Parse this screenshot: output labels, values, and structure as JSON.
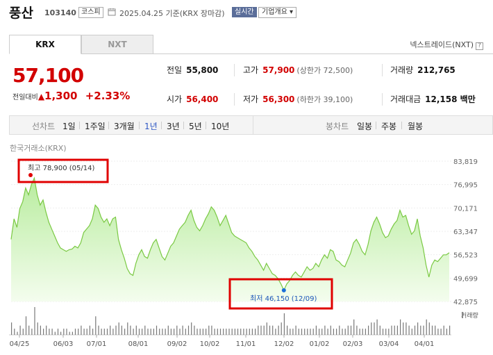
{
  "header": {
    "name": "풍산",
    "code": "103140",
    "market": "코스피",
    "date": "2025.04.25 기준(KRX 장마감)",
    "realtime": "실시간",
    "company_info": "기업개요 ▾",
    "calendar_icon": "calendar-icon"
  },
  "tabs": [
    {
      "label": "KRX",
      "active": true
    },
    {
      "label": "NXT",
      "active": false
    }
  ],
  "nxt_link": "넥스트레이드(NXT)",
  "nxt_help": "?",
  "price": {
    "current": "57,100",
    "change_label": "전일대비",
    "change_arrow": "▲",
    "change": "1,300",
    "change_pct": "+2.33%"
  },
  "stats": {
    "prev_close": {
      "label": "전일",
      "value": "55,800"
    },
    "high": {
      "label": "고가",
      "value": "57,900",
      "sub": "(상한가 72,500)"
    },
    "volume": {
      "label": "거래량",
      "value": "212,765"
    },
    "open": {
      "label": "시가",
      "value": "56,400"
    },
    "low": {
      "label": "저가",
      "value": "56,300",
      "sub": "(하한가 39,100)"
    },
    "amount": {
      "label": "거래대금",
      "value": "12,158 백만"
    }
  },
  "chart_tabs": {
    "line_label": "선차트",
    "line_items": [
      "1일",
      "1주일",
      "3개월",
      "1년",
      "3년",
      "5년",
      "10년"
    ],
    "line_active": "1년",
    "candle_label": "봉차트",
    "candle_items": [
      "일봉",
      "주봉",
      "월봉"
    ]
  },
  "chart_source": "한국거래소(KRX)",
  "chart_data": {
    "type": "area",
    "y_ticks": [
      "83,819",
      "76,995",
      "70,171",
      "63,347",
      "56,523",
      "49,699",
      "42,875"
    ],
    "ylim": [
      42875,
      83819
    ],
    "x_ticks": [
      "04/25",
      "06/03",
      "07/01",
      "08/01",
      "09/02",
      "10/02",
      "11/01",
      "12/02",
      "01/02",
      "02/03",
      "03/04",
      "04/01"
    ],
    "high_annotation": "최고 78,900 (05/14)",
    "low_annotation": "최저 46,150 (12/09)",
    "high_value": 78900,
    "low_value": 46150,
    "volume_label": "거래량",
    "series": [
      {
        "values": [
          61000,
          67000,
          64500,
          70000,
          72000,
          76000,
          74000,
          77000,
          78900,
          74000,
          71000,
          72500,
          69000,
          66000,
          64000,
          62000,
          60000,
          58500,
          58000,
          57500,
          58000,
          58200,
          59000,
          58500,
          60000,
          63000,
          64000,
          65000,
          67000,
          71000,
          70000,
          67500,
          66000,
          67000,
          65000,
          67000,
          67500,
          61000,
          58000,
          55500,
          52500,
          51000,
          50500,
          54000,
          56500,
          58000,
          56000,
          55500,
          58000,
          60000,
          61000,
          58500,
          56000,
          55000,
          57000,
          59000,
          60000,
          62000,
          64000,
          65000,
          66000,
          68000,
          69500,
          66500,
          64500,
          63500,
          65000,
          67000,
          68500,
          70500,
          69500,
          67500,
          65000,
          66500,
          68000,
          65500,
          63000,
          62000,
          61500,
          61000,
          60500,
          60000,
          58500,
          57500,
          56000,
          55000,
          53500,
          52000,
          54000,
          52500,
          51000,
          50500,
          49500,
          48000,
          46150,
          48000,
          49000,
          50500,
          51500,
          50500,
          50000,
          51500,
          53000,
          52000,
          52500,
          54000,
          53000,
          55000,
          56500,
          55500,
          58000,
          57500,
          55000,
          54500,
          53500,
          53000,
          55000,
          57000,
          60000,
          61000,
          59500,
          57500,
          56500,
          59500,
          63500,
          66000,
          67500,
          65500,
          63000,
          61500,
          62000,
          64000,
          65500,
          66500,
          69500,
          67500,
          68000,
          65000,
          62500,
          63500,
          67000,
          62000,
          58500,
          53500,
          50000,
          53500,
          55000,
          54500,
          55500,
          56500,
          56500,
          57100
        ]
      }
    ],
    "volume": [
      4,
      2,
      1,
      3,
      2,
      6,
      3,
      2,
      9,
      4,
      3,
      2,
      3,
      2,
      2,
      1,
      2,
      1,
      2,
      2,
      1,
      1,
      2,
      2,
      3,
      2,
      2,
      3,
      2,
      6,
      3,
      2,
      2,
      2,
      3,
      2,
      3,
      4,
      3,
      2,
      4,
      3,
      2,
      3,
      2,
      2,
      3,
      2,
      2,
      2,
      3,
      2,
      2,
      2,
      3,
      2,
      2,
      3,
      2,
      3,
      2,
      3,
      4,
      3,
      2,
      2,
      2,
      2,
      3,
      3,
      2,
      2,
      2,
      2,
      2,
      2,
      2,
      2,
      2,
      2,
      2,
      2,
      2,
      2,
      2,
      3,
      3,
      3,
      4,
      3,
      3,
      2,
      3,
      4,
      7,
      3,
      2,
      2,
      3,
      2,
      2,
      2,
      2,
      2,
      2,
      3,
      2,
      2,
      3,
      2,
      3,
      2,
      2,
      3,
      2,
      2,
      3,
      3,
      5,
      3,
      2,
      2,
      2,
      3,
      4,
      4,
      5,
      3,
      2,
      2,
      2,
      3,
      3,
      3,
      5,
      4,
      4,
      3,
      2,
      3,
      4,
      3,
      3,
      5,
      4,
      3,
      3,
      2,
      2,
      3,
      2,
      3
    ]
  }
}
